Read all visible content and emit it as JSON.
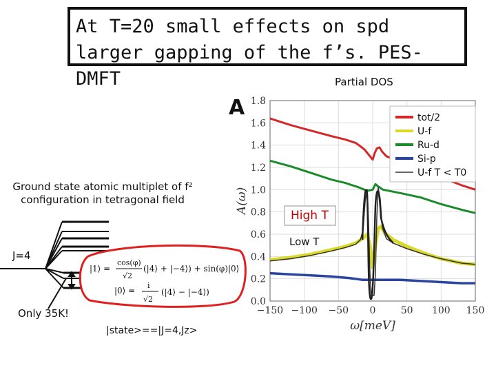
{
  "slide": {
    "title": "At T=20 small effects on spd larger gapping of the f’s. PES-DMFT",
    "partial_dos_label": "Partial DOS",
    "ground_state_caption": "Ground state atomic multiplet of f² configuration in tetragonal field",
    "j_label": "J=4",
    "only_label": "Only 35K!",
    "state_label": "|state>==|J=4,Jz>",
    "high_t_label": "High T",
    "low_t_label": "Low T",
    "formula": {
      "ket1": "|1⟩ = ",
      "cos_num": "cos(φ)",
      "sqrt2": "√2",
      "ket4_pair": "(|4⟩ + |−4⟩) + sin(φ)|0⟩",
      "ket0": "|0⟩ = ",
      "i_num": "i",
      "ket4_diff": "(|4⟩ − |−4⟩)"
    }
  },
  "chart_data": {
    "type": "line",
    "panel_label": "A",
    "xlabel": "ω[meV]",
    "ylabel": "A(ω)",
    "xlim": [
      -150,
      150
    ],
    "ylim": [
      0,
      1.8
    ],
    "x_ticks": [
      "−150",
      "−100",
      "−50",
      "0",
      "50",
      "100",
      "150"
    ],
    "y_ticks": [
      "0.0",
      "0.2",
      "0.4",
      "0.6",
      "0.8",
      "1.0",
      "1.2",
      "1.4",
      "1.6",
      "1.8"
    ],
    "legend_position": "top-right",
    "series": [
      {
        "name": "tot/2",
        "color": "#d62728",
        "points": [
          [
            -150,
            1.64
          ],
          [
            -120,
            1.58
          ],
          [
            -90,
            1.53
          ],
          [
            -60,
            1.48
          ],
          [
            -40,
            1.45
          ],
          [
            -25,
            1.42
          ],
          [
            -18,
            1.39
          ],
          [
            -12,
            1.36
          ],
          [
            -8,
            1.33
          ],
          [
            -4,
            1.3
          ],
          [
            0,
            1.27
          ],
          [
            3,
            1.33
          ],
          [
            6,
            1.37
          ],
          [
            10,
            1.38
          ],
          [
            14,
            1.34
          ],
          [
            20,
            1.3
          ],
          [
            40,
            1.25
          ],
          [
            70,
            1.19
          ],
          [
            100,
            1.11
          ],
          [
            130,
            1.04
          ],
          [
            150,
            1.0
          ]
        ]
      },
      {
        "name": "Ru-d",
        "color": "#1a8a2a",
        "points": [
          [
            -150,
            1.26
          ],
          [
            -120,
            1.21
          ],
          [
            -90,
            1.15
          ],
          [
            -60,
            1.09
          ],
          [
            -40,
            1.06
          ],
          [
            -20,
            1.02
          ],
          [
            -8,
            0.99
          ],
          [
            0,
            1.0
          ],
          [
            4,
            1.05
          ],
          [
            8,
            1.03
          ],
          [
            15,
            1.0
          ],
          [
            40,
            0.97
          ],
          [
            70,
            0.93
          ],
          [
            100,
            0.87
          ],
          [
            130,
            0.82
          ],
          [
            150,
            0.79
          ]
        ]
      },
      {
        "name": "U-f",
        "color": "#d9d92a",
        "points": [
          [
            -150,
            0.37
          ],
          [
            -120,
            0.39
          ],
          [
            -90,
            0.42
          ],
          [
            -60,
            0.46
          ],
          [
            -40,
            0.49
          ],
          [
            -25,
            0.52
          ],
          [
            -15,
            0.56
          ],
          [
            -8,
            0.6
          ],
          [
            -4,
            0.5
          ],
          [
            0,
            0.3
          ],
          [
            4,
            0.5
          ],
          [
            8,
            0.65
          ],
          [
            12,
            0.67
          ],
          [
            18,
            0.61
          ],
          [
            30,
            0.55
          ],
          [
            50,
            0.49
          ],
          [
            75,
            0.43
          ],
          [
            100,
            0.38
          ],
          [
            130,
            0.34
          ],
          [
            150,
            0.33
          ]
        ]
      },
      {
        "name": "Si-p",
        "color": "#2b44a0",
        "points": [
          [
            -150,
            0.25
          ],
          [
            -120,
            0.24
          ],
          [
            -90,
            0.23
          ],
          [
            -60,
            0.22
          ],
          [
            -40,
            0.21
          ],
          [
            -25,
            0.2
          ],
          [
            -15,
            0.19
          ],
          [
            0,
            0.19
          ],
          [
            15,
            0.19
          ],
          [
            40,
            0.19
          ],
          [
            70,
            0.18
          ],
          [
            100,
            0.17
          ],
          [
            130,
            0.16
          ],
          [
            150,
            0.16
          ]
        ]
      },
      {
        "name": "U-f T < T0",
        "color": "#333333",
        "points": [
          [
            -150,
            0.36
          ],
          [
            -120,
            0.38
          ],
          [
            -90,
            0.41
          ],
          [
            -60,
            0.45
          ],
          [
            -40,
            0.48
          ],
          [
            -25,
            0.51
          ],
          [
            -18,
            0.55
          ],
          [
            -14,
            0.64
          ],
          [
            -11,
            0.9
          ],
          [
            -8,
            1.0
          ],
          [
            -6,
            0.7
          ],
          [
            -4,
            0.25
          ],
          [
            -2,
            0.05
          ],
          [
            2,
            0.05
          ],
          [
            4,
            0.25
          ],
          [
            6,
            0.75
          ],
          [
            8,
            1.02
          ],
          [
            11,
            0.92
          ],
          [
            14,
            0.66
          ],
          [
            20,
            0.56
          ],
          [
            30,
            0.52
          ],
          [
            50,
            0.47
          ],
          [
            75,
            0.42
          ],
          [
            100,
            0.38
          ],
          [
            130,
            0.34
          ],
          [
            150,
            0.33
          ]
        ]
      }
    ]
  },
  "colors": {
    "tot": "#d62728",
    "ruf": "#1a8a2a",
    "uf": "#d9d92a",
    "sip": "#2b44a0",
    "ann": "#e02020",
    "lowt": "#222222"
  }
}
